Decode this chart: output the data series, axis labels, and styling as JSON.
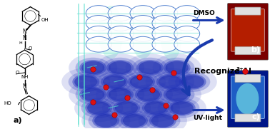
{
  "bg_color": "#ffffff",
  "label_a": "a)",
  "label_b": "b)",
  "label_c": "c)",
  "dmso_text": "DMSO",
  "recognize_text": "Recognize Al",
  "al3plus": "3+",
  "uvlight_text": "UV-light",
  "arrow_color": "#1a3aad",
  "upper_ellipse_color": "#6699ee",
  "upper_ellipse_edge": "#4477cc",
  "upper_ellipse_alpha": 0.5,
  "cyan_line_color": "#55ddcc",
  "cyan_blob_color": "#aaeedd",
  "lower_blob_color": "#2233bb",
  "lower_blob_dark": "#1122aa",
  "red_sphere_color": "#dd1111",
  "red_sphere_edge": "#990000",
  "text_fontsize": 6.5,
  "bold_fontsize": 7.5,
  "label_fontsize": 7,
  "vial_b_dark": "#8b0000",
  "vial_b_light": "#cc2222",
  "vial_c_dark": "#0022aa",
  "vial_c_light": "#2255cc",
  "vial_c_glow": "#aaffee"
}
